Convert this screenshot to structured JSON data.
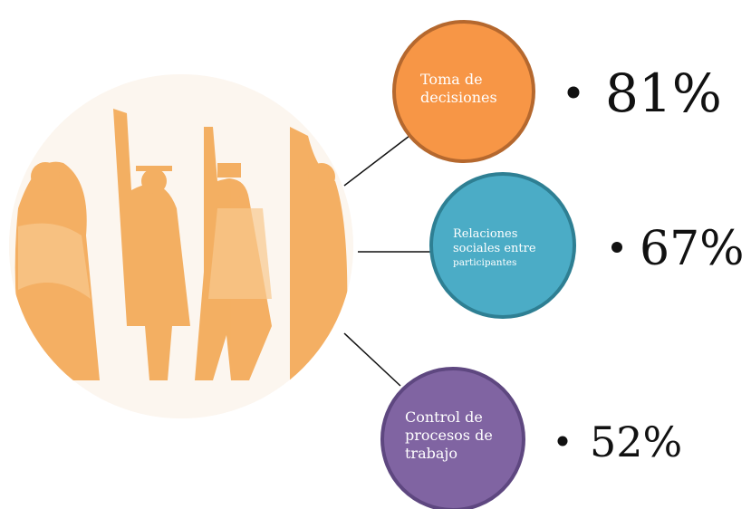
{
  "nodes": [
    {
      "lines": [
        "Toma de",
        "decisiones"
      ],
      "value": "81%"
    },
    {
      "lines": [
        "Relaciones",
        "sociales entre",
        "participantes"
      ],
      "value": "67%"
    },
    {
      "lines": [
        "Control de",
        "procesos de",
        "trabajo"
      ],
      "value": "52%"
    }
  ]
}
